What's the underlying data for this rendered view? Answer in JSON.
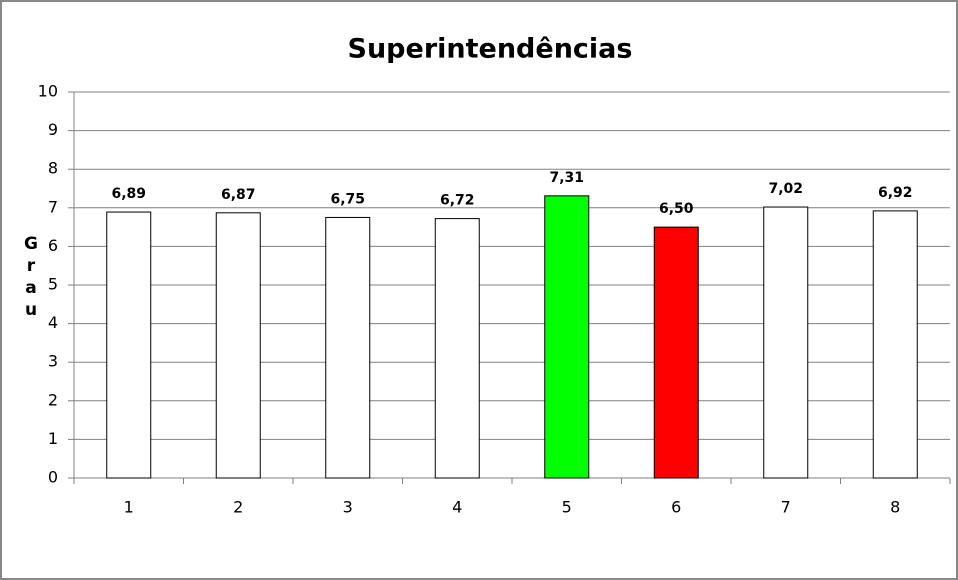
{
  "chart_data": {
    "type": "bar",
    "title": "Superintendências",
    "ylabel": "Grau",
    "categories": [
      "1",
      "2",
      "3",
      "4",
      "5",
      "6",
      "7",
      "8"
    ],
    "values": [
      6.89,
      6.87,
      6.75,
      6.72,
      7.31,
      6.5,
      7.02,
      6.92
    ],
    "value_labels": [
      "6,89",
      "6,87",
      "6,75",
      "6,72",
      "7,31",
      "6,50",
      "7,02",
      "6,92"
    ],
    "colors": [
      "#ffffff",
      "#ffffff",
      "#ffffff",
      "#ffffff",
      "#00ff00",
      "#ff0000",
      "#ffffff",
      "#ffffff"
    ],
    "ylim": [
      0,
      10
    ],
    "yticks": [
      0,
      1,
      2,
      3,
      4,
      5,
      6,
      7,
      8,
      9,
      10
    ],
    "grid": true
  }
}
